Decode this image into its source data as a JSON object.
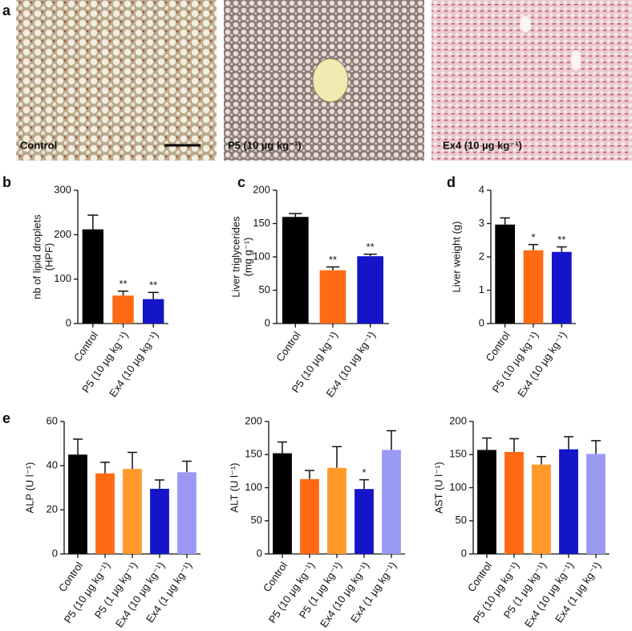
{
  "figure_a": {
    "panel": "a",
    "micrographs": [
      {
        "label": "Control"
      },
      {
        "label": "P5 (10 µg kg⁻¹)"
      },
      {
        "label": "Ex4 (10 µg kg⁻¹)"
      }
    ]
  },
  "chart_data": [
    {
      "type": "bar",
      "panel": "b",
      "y_label": [
        "nb of lipid droplets",
        "(HPF)"
      ],
      "categories": [
        "Control",
        "P5 (10 µg kg⁻¹)",
        "Ex4 (10 µg kg⁻¹)"
      ],
      "values": [
        212,
        63,
        55
      ],
      "errors": [
        32,
        10,
        15
      ],
      "annotations": [
        null,
        "**",
        "**"
      ],
      "colors": [
        "#000000",
        "#ff6a13",
        "#1414c8"
      ],
      "ylim": [
        0,
        300
      ],
      "yticks": [
        0,
        100,
        200,
        300
      ]
    },
    {
      "type": "bar",
      "panel": "c",
      "y_label": [
        "Liver triglycerides",
        "(mg g⁻¹)"
      ],
      "categories": [
        "Control",
        "P5 (10 µg kg⁻¹)",
        "Ex4 (10 µg kg⁻¹)"
      ],
      "values": [
        160,
        80,
        101
      ],
      "errors": [
        5,
        5,
        3
      ],
      "annotations": [
        null,
        "**",
        "**"
      ],
      "colors": [
        "#000000",
        "#ff6a13",
        "#1414c8"
      ],
      "ylim": [
        0,
        200
      ],
      "yticks": [
        0,
        50,
        100,
        150,
        200
      ]
    },
    {
      "type": "bar",
      "panel": "d",
      "y_label": [
        "Liver weight (g)"
      ],
      "categories": [
        "Control",
        "P5 (10 µg kg⁻¹)",
        "Ex4 (10 µg kg⁻¹)"
      ],
      "values": [
        2.97,
        2.2,
        2.15
      ],
      "errors": [
        0.2,
        0.17,
        0.15
      ],
      "annotations": [
        null,
        "*",
        "**"
      ],
      "colors": [
        "#000000",
        "#ff6a13",
        "#1414c8"
      ],
      "ylim": [
        0,
        4
      ],
      "yticks": [
        0,
        1,
        2,
        3,
        4
      ]
    },
    {
      "type": "bar",
      "panel": "e",
      "y_label": [
        "ALP (U l⁻¹)"
      ],
      "categories": [
        "Control",
        "P5 (10 µg kg⁻¹)",
        "P5 (1 µg kg⁻¹)",
        "Ex4 (10 µg kg⁻¹)",
        "Ex4 (1 µg kg⁻¹)"
      ],
      "values": [
        45,
        36.5,
        38.5,
        29.5,
        37
      ],
      "errors": [
        7,
        5,
        7.5,
        4,
        5
      ],
      "annotations": [
        null,
        null,
        null,
        null,
        null
      ],
      "colors": [
        "#000000",
        "#ff6a13",
        "#ff9a2a",
        "#1414c8",
        "#9a9af5"
      ],
      "ylim": [
        0,
        60
      ],
      "yticks": [
        0,
        20,
        40,
        60
      ]
    },
    {
      "type": "bar",
      "y_label": [
        "ALT (U l⁻¹)"
      ],
      "categories": [
        "Control",
        "P5 (10 µg kg⁻¹)",
        "P5 (1 µg kg⁻¹)",
        "Ex4 (10 µg kg⁻¹)",
        "Ex4 (1 µg kg⁻¹)"
      ],
      "values": [
        152,
        113,
        130,
        98,
        157
      ],
      "errors": [
        17,
        13,
        32,
        14,
        29
      ],
      "annotations": [
        null,
        null,
        null,
        "*",
        null
      ],
      "colors": [
        "#000000",
        "#ff6a13",
        "#ff9a2a",
        "#1414c8",
        "#9a9af5"
      ],
      "ylim": [
        0,
        200
      ],
      "yticks": [
        0,
        50,
        100,
        150,
        200
      ]
    },
    {
      "type": "bar",
      "y_label": [
        "AST (U l⁻¹)"
      ],
      "categories": [
        "Control",
        "P5 (10 µg kg⁻¹)",
        "P5 (1 µg kg⁻¹)",
        "Ex4 (10 µg kg⁻¹)",
        "Ex4 (1 µg kg⁻¹)"
      ],
      "values": [
        157,
        154,
        135,
        158,
        151
      ],
      "errors": [
        18,
        20,
        12,
        19,
        20
      ],
      "annotations": [
        null,
        null,
        null,
        null,
        null
      ],
      "colors": [
        "#000000",
        "#ff6a13",
        "#ff9a2a",
        "#1414c8",
        "#9a9af5"
      ],
      "ylim": [
        0,
        200
      ],
      "yticks": [
        0,
        50,
        100,
        150,
        200
      ]
    }
  ]
}
